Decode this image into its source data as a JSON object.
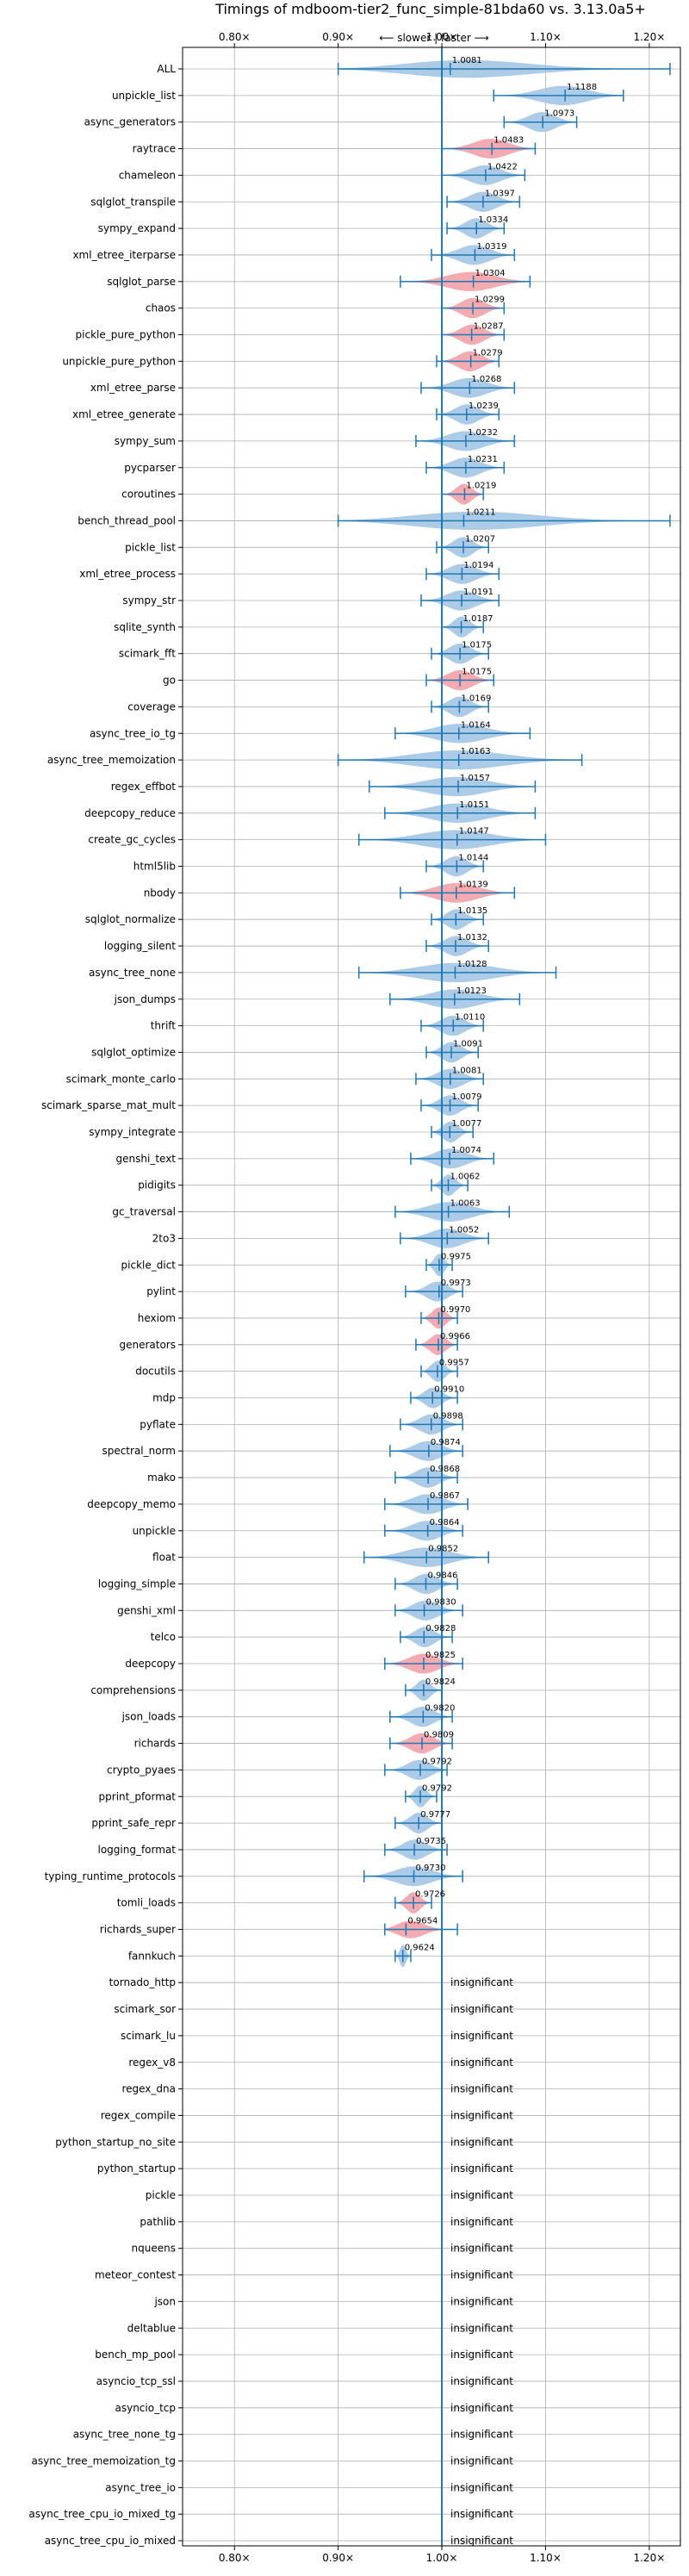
{
  "chart_data": {
    "type": "violin",
    "title": "Timings of mdboom-tier2_func_simple-81bda60 vs. 3.13.0a5+",
    "direction_label": "⟵ slower | faster ⟶",
    "xlim": [
      0.75,
      1.23
    ],
    "xticks": [
      0.8,
      0.9,
      1.0,
      1.1,
      1.2
    ],
    "xtick_labels": [
      "0.80×",
      "0.90×",
      "1.00×",
      "1.10×",
      "1.20×"
    ],
    "grid": true,
    "colors": {
      "faster": "#a6c8e6",
      "slower": "#f2a7ad",
      "whisker": "#1f77b4",
      "reference": "#1f77b4"
    },
    "insignificant_label": "insignificant",
    "benchmarks": [
      {
        "name": "ALL",
        "value": 1.0081,
        "value_label": "1.0081",
        "lo": 0.9,
        "hi": 1.22,
        "slower": false
      },
      {
        "name": "unpickle_list",
        "value": 1.1188,
        "value_label": "1.1188",
        "lo": 1.05,
        "hi": 1.175,
        "slower": false
      },
      {
        "name": "async_generators",
        "value": 1.0973,
        "value_label": "1.0973",
        "lo": 1.06,
        "hi": 1.13,
        "slower": false
      },
      {
        "name": "raytrace",
        "value": 1.0483,
        "value_label": "1.0483",
        "lo": 1.0,
        "hi": 1.09,
        "slower": true
      },
      {
        "name": "chameleon",
        "value": 1.0422,
        "value_label": "1.0422",
        "lo": 1.0,
        "hi": 1.08,
        "slower": false
      },
      {
        "name": "sqlglot_transpile",
        "value": 1.0397,
        "value_label": "1.0397",
        "lo": 1.005,
        "hi": 1.075,
        "slower": false
      },
      {
        "name": "sympy_expand",
        "value": 1.0334,
        "value_label": "1.0334",
        "lo": 1.005,
        "hi": 1.06,
        "slower": false
      },
      {
        "name": "xml_etree_iterparse",
        "value": 1.0319,
        "value_label": "1.0319",
        "lo": 0.99,
        "hi": 1.07,
        "slower": false
      },
      {
        "name": "sqlglot_parse",
        "value": 1.0304,
        "value_label": "1.0304",
        "lo": 0.96,
        "hi": 1.085,
        "slower": true
      },
      {
        "name": "chaos",
        "value": 1.0299,
        "value_label": "1.0299",
        "lo": 1.0,
        "hi": 1.06,
        "slower": true
      },
      {
        "name": "pickle_pure_python",
        "value": 1.0287,
        "value_label": "1.0287",
        "lo": 1.0,
        "hi": 1.06,
        "slower": true
      },
      {
        "name": "unpickle_pure_python",
        "value": 1.0279,
        "value_label": "1.0279",
        "lo": 0.995,
        "hi": 1.055,
        "slower": true
      },
      {
        "name": "xml_etree_parse",
        "value": 1.0268,
        "value_label": "1.0268",
        "lo": 0.98,
        "hi": 1.07,
        "slower": false
      },
      {
        "name": "xml_etree_generate",
        "value": 1.0239,
        "value_label": "1.0239",
        "lo": 0.995,
        "hi": 1.055,
        "slower": false
      },
      {
        "name": "sympy_sum",
        "value": 1.0232,
        "value_label": "1.0232",
        "lo": 0.975,
        "hi": 1.07,
        "slower": false
      },
      {
        "name": "pycparser",
        "value": 1.0231,
        "value_label": "1.0231",
        "lo": 0.985,
        "hi": 1.06,
        "slower": false
      },
      {
        "name": "coroutines",
        "value": 1.0219,
        "value_label": "1.0219",
        "lo": 1.0,
        "hi": 1.04,
        "slower": true
      },
      {
        "name": "bench_thread_pool",
        "value": 1.0211,
        "value_label": "1.0211",
        "lo": 0.9,
        "hi": 1.22,
        "slower": false
      },
      {
        "name": "pickle_list",
        "value": 1.0207,
        "value_label": "1.0207",
        "lo": 0.995,
        "hi": 1.045,
        "slower": false
      },
      {
        "name": "xml_etree_process",
        "value": 1.0194,
        "value_label": "1.0194",
        "lo": 0.985,
        "hi": 1.055,
        "slower": false
      },
      {
        "name": "sympy_str",
        "value": 1.0191,
        "value_label": "1.0191",
        "lo": 0.98,
        "hi": 1.055,
        "slower": false
      },
      {
        "name": "sqlite_synth",
        "value": 1.0187,
        "value_label": "1.0187",
        "lo": 1.0,
        "hi": 1.04,
        "slower": false
      },
      {
        "name": "scimark_fft",
        "value": 1.0175,
        "value_label": "1.0175",
        "lo": 0.99,
        "hi": 1.045,
        "slower": false
      },
      {
        "name": "go",
        "value": 1.0175,
        "value_label": "1.0175",
        "lo": 0.985,
        "hi": 1.05,
        "slower": true
      },
      {
        "name": "coverage",
        "value": 1.0169,
        "value_label": "1.0169",
        "lo": 0.99,
        "hi": 1.045,
        "slower": false
      },
      {
        "name": "async_tree_io_tg",
        "value": 1.0164,
        "value_label": "1.0164",
        "lo": 0.955,
        "hi": 1.085,
        "slower": false
      },
      {
        "name": "async_tree_memoization",
        "value": 1.0163,
        "value_label": "1.0163",
        "lo": 0.9,
        "hi": 1.135,
        "slower": false
      },
      {
        "name": "regex_effbot",
        "value": 1.0157,
        "value_label": "1.0157",
        "lo": 0.93,
        "hi": 1.09,
        "slower": false
      },
      {
        "name": "deepcopy_reduce",
        "value": 1.0151,
        "value_label": "1.0151",
        "lo": 0.945,
        "hi": 1.09,
        "slower": false
      },
      {
        "name": "create_gc_cycles",
        "value": 1.0147,
        "value_label": "1.0147",
        "lo": 0.92,
        "hi": 1.1,
        "slower": false
      },
      {
        "name": "html5lib",
        "value": 1.0144,
        "value_label": "1.0144",
        "lo": 0.985,
        "hi": 1.04,
        "slower": false
      },
      {
        "name": "nbody",
        "value": 1.0139,
        "value_label": "1.0139",
        "lo": 0.96,
        "hi": 1.07,
        "slower": true
      },
      {
        "name": "sqlglot_normalize",
        "value": 1.0135,
        "value_label": "1.0135",
        "lo": 0.99,
        "hi": 1.04,
        "slower": false
      },
      {
        "name": "logging_silent",
        "value": 1.0132,
        "value_label": "1.0132",
        "lo": 0.985,
        "hi": 1.045,
        "slower": false
      },
      {
        "name": "async_tree_none",
        "value": 1.0128,
        "value_label": "1.0128",
        "lo": 0.92,
        "hi": 1.11,
        "slower": false
      },
      {
        "name": "json_dumps",
        "value": 1.0123,
        "value_label": "1.0123",
        "lo": 0.95,
        "hi": 1.075,
        "slower": false
      },
      {
        "name": "thrift",
        "value": 1.011,
        "value_label": "1.0110",
        "lo": 0.98,
        "hi": 1.04,
        "slower": false
      },
      {
        "name": "sqlglot_optimize",
        "value": 1.0091,
        "value_label": "1.0091",
        "lo": 0.985,
        "hi": 1.035,
        "slower": false
      },
      {
        "name": "scimark_monte_carlo",
        "value": 1.0081,
        "value_label": "1.0081",
        "lo": 0.975,
        "hi": 1.04,
        "slower": false
      },
      {
        "name": "scimark_sparse_mat_mult",
        "value": 1.0079,
        "value_label": "1.0079",
        "lo": 0.98,
        "hi": 1.035,
        "slower": false
      },
      {
        "name": "sympy_integrate",
        "value": 1.0077,
        "value_label": "1.0077",
        "lo": 0.99,
        "hi": 1.03,
        "slower": false
      },
      {
        "name": "genshi_text",
        "value": 1.0074,
        "value_label": "1.0074",
        "lo": 0.97,
        "hi": 1.05,
        "slower": false
      },
      {
        "name": "pidigits",
        "value": 1.0062,
        "value_label": "1.0062",
        "lo": 0.99,
        "hi": 1.025,
        "slower": false
      },
      {
        "name": "gc_traversal",
        "value": 1.0063,
        "value_label": "1.0063",
        "lo": 0.955,
        "hi": 1.065,
        "slower": false
      },
      {
        "name": "2to3",
        "value": 1.0052,
        "value_label": "1.0052",
        "lo": 0.96,
        "hi": 1.045,
        "slower": false
      },
      {
        "name": "pickle_dict",
        "value": 0.9975,
        "value_label": "0.9975",
        "lo": 0.985,
        "hi": 1.01,
        "slower": false
      },
      {
        "name": "pylint",
        "value": 0.9973,
        "value_label": "0.9973",
        "lo": 0.965,
        "hi": 1.02,
        "slower": false
      },
      {
        "name": "hexiom",
        "value": 0.997,
        "value_label": "0.9970",
        "lo": 0.98,
        "hi": 1.015,
        "slower": true
      },
      {
        "name": "generators",
        "value": 0.9966,
        "value_label": "0.9966",
        "lo": 0.975,
        "hi": 1.015,
        "slower": true
      },
      {
        "name": "docutils",
        "value": 0.9957,
        "value_label": "0.9957",
        "lo": 0.98,
        "hi": 1.015,
        "slower": false
      },
      {
        "name": "mdp",
        "value": 0.991,
        "value_label": "0.9910",
        "lo": 0.97,
        "hi": 1.015,
        "slower": false
      },
      {
        "name": "pyflate",
        "value": 0.9898,
        "value_label": "0.9898",
        "lo": 0.96,
        "hi": 1.02,
        "slower": false
      },
      {
        "name": "spectral_norm",
        "value": 0.9874,
        "value_label": "0.9874",
        "lo": 0.95,
        "hi": 1.02,
        "slower": false
      },
      {
        "name": "mako",
        "value": 0.9868,
        "value_label": "0.9868",
        "lo": 0.955,
        "hi": 1.015,
        "slower": false
      },
      {
        "name": "deepcopy_memo",
        "value": 0.9867,
        "value_label": "0.9867",
        "lo": 0.945,
        "hi": 1.025,
        "slower": false
      },
      {
        "name": "unpickle",
        "value": 0.9864,
        "value_label": "0.9864",
        "lo": 0.945,
        "hi": 1.02,
        "slower": false
      },
      {
        "name": "float",
        "value": 0.9852,
        "value_label": "0.9852",
        "lo": 0.925,
        "hi": 1.045,
        "slower": false
      },
      {
        "name": "logging_simple",
        "value": 0.9846,
        "value_label": "0.9846",
        "lo": 0.955,
        "hi": 1.015,
        "slower": false
      },
      {
        "name": "genshi_xml",
        "value": 0.983,
        "value_label": "0.9830",
        "lo": 0.955,
        "hi": 1.02,
        "slower": false
      },
      {
        "name": "telco",
        "value": 0.9828,
        "value_label": "0.9828",
        "lo": 0.96,
        "hi": 1.01,
        "slower": false
      },
      {
        "name": "deepcopy",
        "value": 0.9825,
        "value_label": "0.9825",
        "lo": 0.945,
        "hi": 1.02,
        "slower": true
      },
      {
        "name": "comprehensions",
        "value": 0.9824,
        "value_label": "0.9824",
        "lo": 0.965,
        "hi": 1.0,
        "slower": false
      },
      {
        "name": "json_loads",
        "value": 0.982,
        "value_label": "0.9820",
        "lo": 0.95,
        "hi": 1.01,
        "slower": false
      },
      {
        "name": "richards",
        "value": 0.9809,
        "value_label": "0.9809",
        "lo": 0.95,
        "hi": 1.01,
        "slower": true
      },
      {
        "name": "crypto_pyaes",
        "value": 0.9792,
        "value_label": "0.9792",
        "lo": 0.945,
        "hi": 1.005,
        "slower": false
      },
      {
        "name": "pprint_pformat",
        "value": 0.9792,
        "value_label": "0.9792",
        "lo": 0.965,
        "hi": 0.995,
        "slower": false
      },
      {
        "name": "pprint_safe_repr",
        "value": 0.9777,
        "value_label": "0.9777",
        "lo": 0.955,
        "hi": 1.0,
        "slower": false
      },
      {
        "name": "logging_format",
        "value": 0.9735,
        "value_label": "0.9735",
        "lo": 0.945,
        "hi": 1.005,
        "slower": false
      },
      {
        "name": "typing_runtime_protocols",
        "value": 0.973,
        "value_label": "0.9730",
        "lo": 0.925,
        "hi": 1.02,
        "slower": false
      },
      {
        "name": "tomli_loads",
        "value": 0.9726,
        "value_label": "0.9726",
        "lo": 0.955,
        "hi": 0.99,
        "slower": true
      },
      {
        "name": "richards_super",
        "value": 0.9654,
        "value_label": "0.9654",
        "lo": 0.945,
        "hi": 1.015,
        "slower": true
      },
      {
        "name": "fannkuch",
        "value": 0.9624,
        "value_label": "0.9624",
        "lo": 0.955,
        "hi": 0.97,
        "slower": false
      },
      {
        "name": "tornado_http",
        "value": null
      },
      {
        "name": "scimark_sor",
        "value": null
      },
      {
        "name": "scimark_lu",
        "value": null
      },
      {
        "name": "regex_v8",
        "value": null
      },
      {
        "name": "regex_dna",
        "value": null
      },
      {
        "name": "regex_compile",
        "value": null
      },
      {
        "name": "python_startup_no_site",
        "value": null
      },
      {
        "name": "python_startup",
        "value": null
      },
      {
        "name": "pickle",
        "value": null
      },
      {
        "name": "pathlib",
        "value": null
      },
      {
        "name": "nqueens",
        "value": null
      },
      {
        "name": "meteor_contest",
        "value": null
      },
      {
        "name": "json",
        "value": null
      },
      {
        "name": "deltablue",
        "value": null
      },
      {
        "name": "bench_mp_pool",
        "value": null
      },
      {
        "name": "asyncio_tcp_ssl",
        "value": null
      },
      {
        "name": "asyncio_tcp",
        "value": null
      },
      {
        "name": "async_tree_none_tg",
        "value": null
      },
      {
        "name": "async_tree_memoization_tg",
        "value": null
      },
      {
        "name": "async_tree_io",
        "value": null
      },
      {
        "name": "async_tree_cpu_io_mixed_tg",
        "value": null
      },
      {
        "name": "async_tree_cpu_io_mixed",
        "value": null
      }
    ]
  }
}
